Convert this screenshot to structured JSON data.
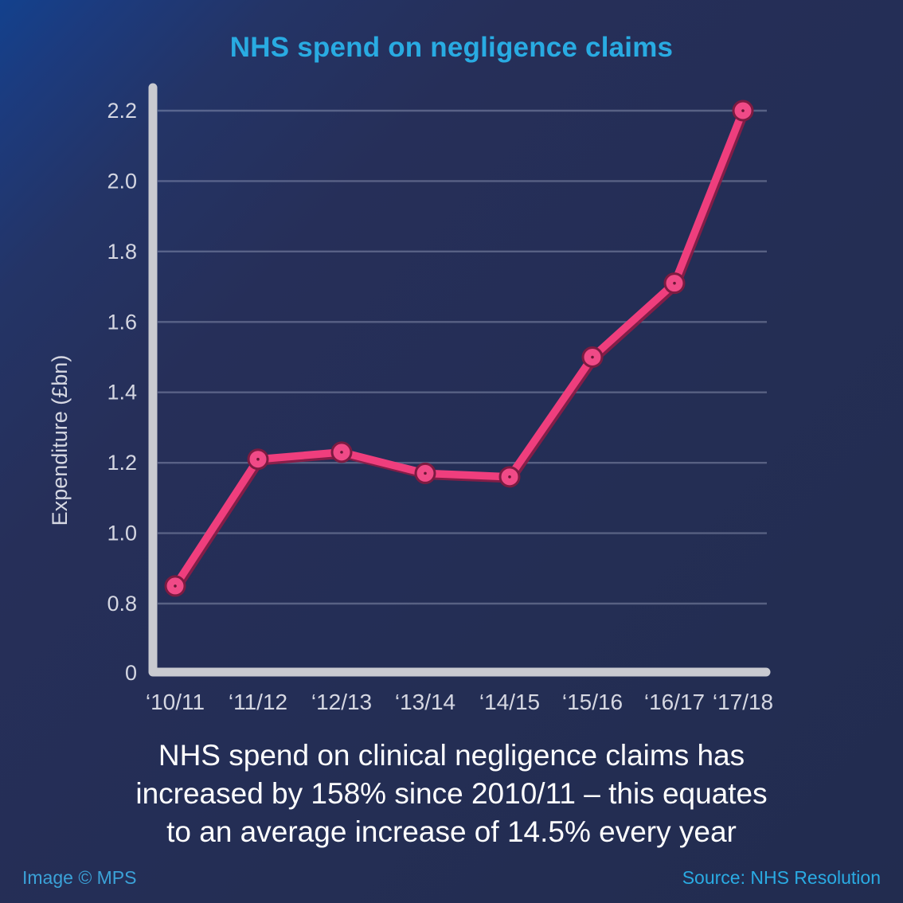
{
  "title": "NHS spend on negligence claims",
  "chart_data": {
    "type": "line",
    "title": "NHS spend on negligence claims",
    "x_labels": [
      "‘10/11",
      "‘11/12",
      "‘12/13",
      "‘13/14",
      "‘14/15",
      "‘15/16",
      "‘16/17",
      "‘17/18"
    ],
    "values": [
      0.85,
      1.21,
      1.23,
      1.17,
      1.16,
      1.5,
      1.71,
      2.2
    ],
    "ylabel": "Expenditure (£bn)",
    "ytick_labels": [
      "0",
      "0.8",
      "1.0",
      "1.2",
      "1.4",
      "1.6",
      "1.8",
      "2.0",
      "2.2"
    ],
    "ylim": [
      0,
      2.2
    ],
    "y_axis_compressed_below": 0.8,
    "grid": true,
    "legend": "none",
    "colors": {
      "line": "#ef3e7d",
      "line_shadow": "#8e1c46",
      "marker_fill": "#f04a87",
      "marker_outline": "#7c1b41",
      "marker_dot": "#6b1636",
      "axis": "#c9cad0",
      "grid": "rgba(210,216,240,0.30)",
      "tick_text": "#d5d7e2",
      "accent": "#29abe2"
    }
  },
  "caption": {
    "lines": [
      "NHS spend on clinical negligence claims has",
      "increased by 158% since 2010/11 – this equates",
      "to an average increase of 14.5% every year"
    ]
  },
  "footer": {
    "left": "Image © MPS",
    "right": "Source: NHS Resolution"
  }
}
